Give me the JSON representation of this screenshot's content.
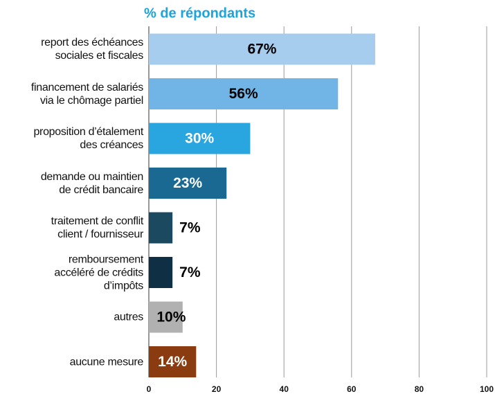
{
  "chart_data": {
    "type": "barh",
    "title": "% de répondants",
    "categories": [
      "report des échéances\nsociales et fiscales",
      "financement de salariés\nvia le chômage partiel",
      "proposition d’étalement\ndes créances",
      "demande ou maintien\nde crédit bancaire",
      "traitement de conflit\nclient / fournisseur",
      "remboursement\naccéléré de crédits\nd’impôts",
      "autres",
      "aucune mesure"
    ],
    "values": [
      67,
      56,
      30,
      23,
      7,
      7,
      10,
      14
    ],
    "value_labels": [
      "67%",
      "56%",
      "30%",
      "23%",
      "7%",
      "7%",
      "10%",
      "14%"
    ],
    "colors": [
      "#a6ccee",
      "#71b5e6",
      "#29a6e0",
      "#1a6992",
      "#1b4960",
      "#0e2f44",
      "#b1b1b1",
      "#8a3c10"
    ],
    "value_label_colors": [
      "#000000",
      "#000000",
      "#ffffff",
      "#ffffff",
      "#000000",
      "#000000",
      "#000000",
      "#ffffff"
    ],
    "xlim": [
      0,
      100
    ],
    "xticks": [
      0,
      20,
      40,
      60,
      80,
      100
    ],
    "grid": true
  }
}
